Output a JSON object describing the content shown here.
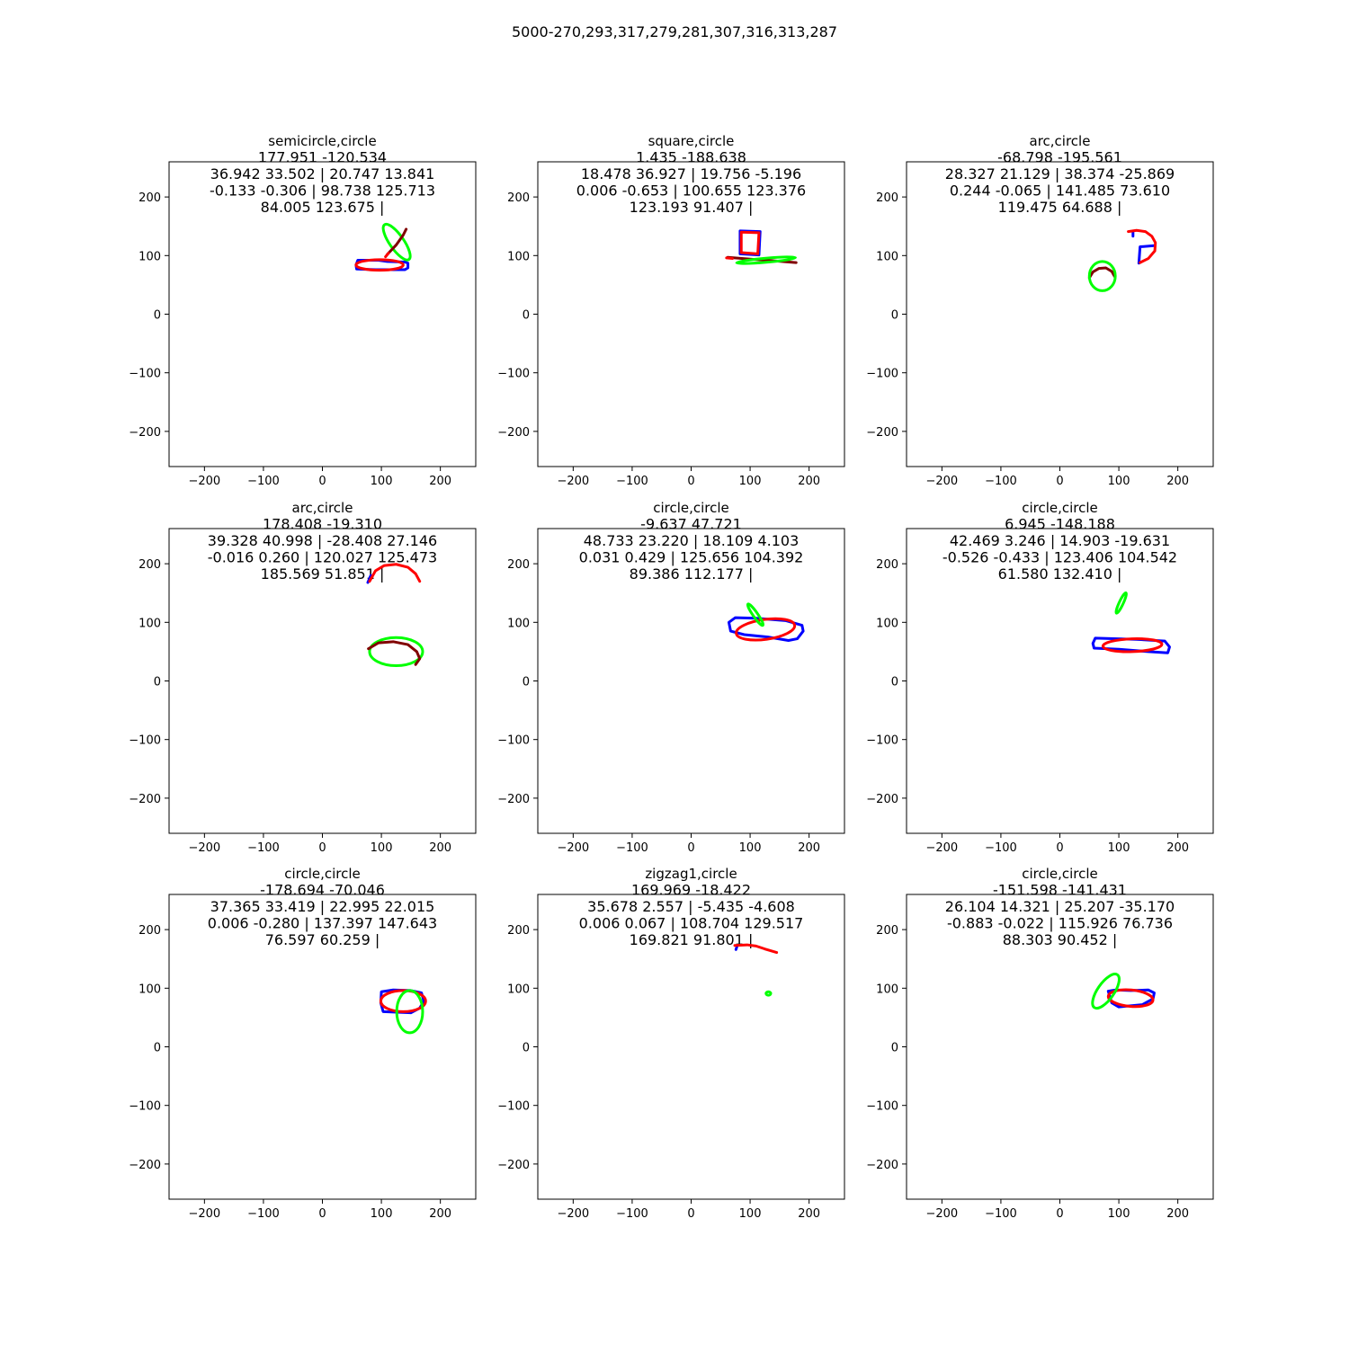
{
  "figure": {
    "suptitle": "5000-270,293,317,279,281,307,316,313,287"
  },
  "colors": {
    "blue": "#0000ff",
    "red": "#ff0000",
    "green": "#00ff00",
    "dark_red": "#800000",
    "axis": "#000000",
    "background": "#ffffff"
  },
  "chart_data": [
    {
      "type": "line",
      "title_lines": [
        "semicircle,circle",
        "177.951 -120.534",
        "36.942 33.502 | 20.747 13.841",
        "-0.133 -0.306 | 98.738 125.713",
        "84.005 123.675 |"
      ],
      "xlim": [
        -260,
        260
      ],
      "ylim": [
        260,
        -260
      ],
      "xticks": [
        -200,
        -100,
        0,
        100,
        200
      ],
      "yticks": [
        -200,
        -100,
        0,
        100,
        200
      ],
      "series": [
        {
          "color": "#0000ff",
          "kind": "polygon",
          "points": [
            [
              58,
              77
            ],
            [
              90,
              76
            ],
            [
              140,
              76
            ],
            [
              145,
              79
            ],
            [
              145,
              87
            ],
            [
              140,
              89
            ],
            [
              110,
              90
            ],
            [
              95,
              92
            ],
            [
              60,
              92
            ],
            [
              57,
              84
            ]
          ]
        },
        {
          "color": "#ff0000",
          "kind": "ellipse",
          "cx": 97,
          "cy": 84,
          "rx": 40,
          "ry": 9,
          "angle": 0
        },
        {
          "color": "#00ff00",
          "kind": "ellipse",
          "cx": 126,
          "cy": 123,
          "rx": 36,
          "ry": 12,
          "angle": 55
        },
        {
          "color": "#800000",
          "kind": "polyline",
          "points": [
            [
              110,
              102
            ],
            [
              125,
              118
            ],
            [
              137,
              135
            ],
            [
              142,
              145
            ]
          ]
        },
        {
          "color": "#ff0000",
          "kind": "polyline",
          "points": [
            [
              107,
              98
            ],
            [
              112,
              104
            ]
          ]
        }
      ]
    },
    {
      "type": "line",
      "title_lines": [
        "square,circle",
        "1.435 -188.638",
        "18.478 36.927 | 19.756 -5.196",
        "0.006 -0.653 | 100.655 123.376",
        "123.193 91.407 |"
      ],
      "xlim": [
        -260,
        260
      ],
      "ylim": [
        260,
        -260
      ],
      "xticks": [
        -200,
        -100,
        0,
        100,
        200
      ],
      "yticks": [
        -200,
        -100,
        0,
        100,
        200
      ],
      "series": [
        {
          "color": "#0000ff",
          "kind": "polygon",
          "points": [
            [
              83,
              103
            ],
            [
              115,
              101
            ],
            [
              117,
              141
            ],
            [
              83,
              142
            ]
          ]
        },
        {
          "color": "#ff0000",
          "kind": "polygon",
          "points": [
            [
              85,
              105
            ],
            [
              113,
              103
            ],
            [
              115,
              139
            ],
            [
              85,
              140
            ]
          ]
        },
        {
          "color": "#800000",
          "kind": "polyline",
          "points": [
            [
              62,
              97
            ],
            [
              100,
              94
            ],
            [
              140,
              91
            ],
            [
              178,
              88
            ]
          ]
        },
        {
          "color": "#00ff00",
          "kind": "ellipse",
          "cx": 127,
          "cy": 92,
          "rx": 50,
          "ry": 3.5,
          "angle": -5
        },
        {
          "color": "#ff0000",
          "kind": "polyline",
          "points": [
            [
              60,
              96
            ],
            [
              70,
              95
            ]
          ]
        }
      ]
    },
    {
      "type": "line",
      "title_lines": [
        "arc,circle",
        "-68.798 -195.561",
        "28.327 21.129 | 38.374 -25.869",
        "0.244 -0.065 | 141.485 73.610",
        "119.475 64.688 |"
      ],
      "xlim": [
        -260,
        260
      ],
      "ylim": [
        260,
        -260
      ],
      "xticks": [
        -200,
        -100,
        0,
        100,
        200
      ],
      "yticks": [
        -200,
        -100,
        0,
        100,
        200
      ],
      "series": [
        {
          "color": "#800000",
          "kind": "polyline",
          "points": [
            [
              50,
              62
            ],
            [
              56,
              72
            ],
            [
              66,
              78
            ],
            [
              78,
              79
            ],
            [
              88,
              73
            ],
            [
              93,
              64
            ]
          ]
        },
        {
          "color": "#00ff00",
          "kind": "ellipse",
          "cx": 72,
          "cy": 65,
          "rx": 22,
          "ry": 25,
          "angle": 0
        },
        {
          "color": "#0000ff",
          "kind": "polyline",
          "points": [
            [
              134,
              87
            ],
            [
              136,
              115
            ],
            [
              160,
              117
            ]
          ]
        },
        {
          "color": "#0000ff",
          "kind": "polyline",
          "points": [
            [
              124,
              133
            ],
            [
              124,
              140
            ]
          ]
        },
        {
          "color": "#ff0000",
          "kind": "polyline",
          "points": [
            [
              136,
              88
            ],
            [
              150,
              95
            ],
            [
              161,
              108
            ],
            [
              162,
              122
            ],
            [
              156,
              133
            ],
            [
              145,
              141
            ],
            [
              130,
              143
            ],
            [
              116,
              141
            ]
          ]
        }
      ]
    },
    {
      "type": "line",
      "title_lines": [
        "arc,circle",
        "178.408 -19.310",
        "39.328 40.998 | -28.408 27.146",
        "-0.016 0.260 | 120.027 125.473",
        "185.569 51.851 |"
      ],
      "xlim": [
        -260,
        260
      ],
      "ylim": [
        260,
        -260
      ],
      "xticks": [
        -200,
        -100,
        0,
        100,
        200
      ],
      "yticks": [
        -200,
        -100,
        0,
        100,
        200
      ],
      "series": [
        {
          "color": "#00ff00",
          "kind": "ellipse",
          "cx": 125,
          "cy": 50,
          "rx": 45,
          "ry": 24,
          "angle": 0
        },
        {
          "color": "#800000",
          "kind": "polyline",
          "points": [
            [
              78,
              55
            ],
            [
              95,
              65
            ],
            [
              120,
              67
            ],
            [
              145,
              62
            ],
            [
              160,
              50
            ],
            [
              165,
              38
            ],
            [
              158,
              28
            ]
          ]
        },
        {
          "color": "#0000ff",
          "kind": "polyline",
          "points": [
            [
              77,
              168
            ],
            [
              82,
              180
            ]
          ]
        },
        {
          "color": "#ff0000",
          "kind": "polyline",
          "points": [
            [
              80,
              170
            ],
            [
              90,
              188
            ],
            [
              105,
              197
            ],
            [
              125,
              199
            ],
            [
              145,
              194
            ],
            [
              158,
              183
            ],
            [
              165,
              170
            ]
          ]
        }
      ]
    },
    {
      "type": "line",
      "title_lines": [
        "circle,circle",
        "-9.637 47.721",
        "48.733 23.220 | 18.109 4.103",
        "0.031 0.429 | 125.656 104.392",
        "89.386 112.177 |"
      ],
      "xlim": [
        -260,
        260
      ],
      "ylim": [
        260,
        -260
      ],
      "xticks": [
        -200,
        -100,
        0,
        100,
        200
      ],
      "yticks": [
        -200,
        -100,
        0,
        100,
        200
      ],
      "series": [
        {
          "color": "#0000ff",
          "kind": "polygon",
          "points": [
            [
              67,
              85
            ],
            [
              90,
              79
            ],
            [
              130,
              75
            ],
            [
              165,
              69
            ],
            [
              180,
              72
            ],
            [
              190,
              85
            ],
            [
              188,
              95
            ],
            [
              160,
              103
            ],
            [
              110,
              107
            ],
            [
              75,
              108
            ],
            [
              64,
              100
            ]
          ]
        },
        {
          "color": "#ff0000",
          "kind": "ellipse",
          "cx": 126,
          "cy": 88,
          "rx": 50,
          "ry": 17,
          "angle": -8
        },
        {
          "color": "#00ff00",
          "kind": "ellipse",
          "cx": 109,
          "cy": 113,
          "rx": 22,
          "ry": 4,
          "angle": 55
        }
      ]
    },
    {
      "type": "line",
      "title_lines": [
        "circle,circle",
        "6.945 -148.188",
        "42.469 3.246 | 14.903 -19.631",
        "-0.526 -0.433 | 123.406 104.542",
        "61.580 132.410 |"
      ],
      "xlim": [
        -260,
        260
      ],
      "ylim": [
        260,
        -260
      ],
      "xticks": [
        -200,
        -100,
        0,
        100,
        200
      ],
      "yticks": [
        -200,
        -100,
        0,
        100,
        200
      ],
      "series": [
        {
          "color": "#0000ff",
          "kind": "polygon",
          "points": [
            [
              58,
              56
            ],
            [
              100,
              54
            ],
            [
              150,
              50
            ],
            [
              183,
              48
            ],
            [
              186,
              58
            ],
            [
              178,
              68
            ],
            [
              130,
              71
            ],
            [
              60,
              73
            ],
            [
              56,
              64
            ]
          ]
        },
        {
          "color": "#ff0000",
          "kind": "ellipse",
          "cx": 123,
          "cy": 61,
          "rx": 50,
          "ry": 11,
          "angle": -2
        },
        {
          "color": "#00ff00",
          "kind": "ellipse",
          "cx": 104,
          "cy": 133,
          "rx": 19,
          "ry": 3.5,
          "angle": -65
        }
      ]
    },
    {
      "type": "line",
      "title_lines": [
        "circle,circle",
        "-178.694 -70.046",
        "37.365 33.419 | 22.995 22.015",
        "0.006 -0.280 | 137.397 147.643",
        "76.597 60.259 |"
      ],
      "xlim": [
        -260,
        260
      ],
      "ylim": [
        260,
        -260
      ],
      "xticks": [
        -200,
        -100,
        0,
        100,
        200
      ],
      "yticks": [
        -200,
        -100,
        0,
        100,
        200
      ],
      "series": [
        {
          "color": "#0000ff",
          "kind": "polygon",
          "points": [
            [
              103,
              60
            ],
            [
              150,
              58
            ],
            [
              165,
              66
            ],
            [
              172,
              78
            ],
            [
              168,
              92
            ],
            [
              150,
              96
            ],
            [
              120,
              97
            ],
            [
              100,
              94
            ],
            [
              99,
              75
            ]
          ]
        },
        {
          "color": "#ff0000",
          "kind": "ellipse",
          "cx": 137,
          "cy": 78,
          "rx": 38,
          "ry": 18,
          "angle": 0
        },
        {
          "color": "#00ff00",
          "kind": "ellipse",
          "cx": 148,
          "cy": 60,
          "rx": 22,
          "ry": 36,
          "angle": 0
        }
      ]
    },
    {
      "type": "line",
      "title_lines": [
        "zigzag1,circle",
        "169.969 -18.422",
        "35.678 2.557 | -5.435 -4.608",
        "0.006 0.067 | 108.704 129.517",
        "169.821 91.801 |"
      ],
      "xlim": [
        -260,
        260
      ],
      "ylim": [
        260,
        -260
      ],
      "xticks": [
        -200,
        -100,
        0,
        100,
        200
      ],
      "yticks": [
        -200,
        -100,
        0,
        100,
        200
      ],
      "series": [
        {
          "color": "#0000ff",
          "kind": "polyline",
          "points": [
            [
              76,
              166
            ],
            [
              78,
              172
            ]
          ]
        },
        {
          "color": "#ff0000",
          "kind": "polyline",
          "points": [
            [
              74,
              173
            ],
            [
              95,
              174
            ],
            [
              110,
              172
            ],
            [
              125,
              167
            ],
            [
              145,
              161
            ]
          ]
        },
        {
          "color": "#00ff00",
          "kind": "ellipse",
          "cx": 131,
          "cy": 91,
          "rx": 4,
          "ry": 3,
          "angle": 0
        }
      ]
    },
    {
      "type": "line",
      "title_lines": [
        "circle,circle",
        "-151.598 -141.431",
        "26.104 14.321 | 25.207 -35.170",
        "-0.883 -0.022 | 115.926 76.736",
        "88.303 90.452 |"
      ],
      "xlim": [
        -260,
        260
      ],
      "ylim": [
        260,
        -260
      ],
      "xticks": [
        -200,
        -100,
        0,
        100,
        200
      ],
      "yticks": [
        -200,
        -100,
        0,
        100,
        200
      ],
      "series": [
        {
          "color": "#0000ff",
          "kind": "polygon",
          "points": [
            [
              82,
              95
            ],
            [
              88,
              75
            ],
            [
              100,
              68
            ],
            [
              140,
              72
            ],
            [
              158,
              82
            ],
            [
              160,
              92
            ],
            [
              150,
              97
            ],
            [
              120,
              96
            ],
            [
              95,
              97
            ]
          ]
        },
        {
          "color": "#ff0000",
          "kind": "ellipse",
          "cx": 120,
          "cy": 83,
          "rx": 38,
          "ry": 14,
          "angle": 5
        },
        {
          "color": "#00ff00",
          "kind": "ellipse",
          "cx": 78,
          "cy": 95,
          "rx": 34,
          "ry": 14,
          "angle": -55
        }
      ]
    }
  ]
}
